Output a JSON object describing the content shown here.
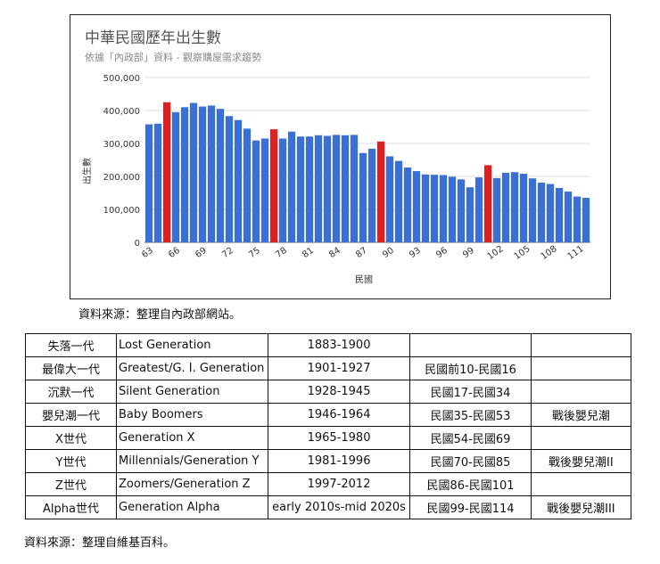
{
  "chart_data": {
    "type": "bar",
    "title": "中華民國歷年出生數",
    "subtitle": "依據「內政部」資料 - 觀察購屋需求趨勢",
    "xlabel": "民國",
    "ylabel": "出生數",
    "ylim": [
      0,
      500000
    ],
    "yticks": [
      "0",
      "100,000",
      "200,000",
      "300,000",
      "400,000",
      "500,000"
    ],
    "xtick_labels": [
      "63",
      "66",
      "69",
      "72",
      "75",
      "78",
      "81",
      "84",
      "87",
      "90",
      "93",
      "96",
      "99",
      "102",
      "105",
      "108",
      "111"
    ],
    "highlight_color": "#e02020",
    "bar_color": "#3a6fd8",
    "x": [
      63,
      64,
      65,
      66,
      67,
      68,
      69,
      70,
      71,
      72,
      73,
      74,
      75,
      76,
      77,
      78,
      79,
      80,
      81,
      82,
      83,
      84,
      85,
      86,
      87,
      88,
      89,
      90,
      91,
      92,
      93,
      94,
      95,
      96,
      97,
      98,
      99,
      100,
      101,
      102,
      103,
      104,
      105,
      106,
      107,
      108,
      109,
      110,
      111,
      112
    ],
    "values": [
      358000,
      360000,
      425000,
      395000,
      410000,
      423000,
      412000,
      415000,
      405000,
      383000,
      371000,
      345000,
      309000,
      315000,
      343000,
      315000,
      336000,
      321000,
      321000,
      325000,
      323000,
      326000,
      325000,
      326000,
      271000,
      284000,
      306000,
      261000,
      247000,
      227000,
      216000,
      206000,
      205000,
      204000,
      199000,
      191000,
      167000,
      197000,
      234000,
      195000,
      211000,
      213000,
      208000,
      194000,
      181000,
      177000,
      165000,
      154000,
      139000,
      135000
    ],
    "highlighted_x": [
      65,
      77,
      89,
      101
    ]
  },
  "source_1": "資料來源：整理自內政部網站。",
  "source_2": "資料來源：整理自維基百科。",
  "table": {
    "rows": [
      [
        "失落一代",
        "Lost Generation",
        "1883-1900",
        "",
        ""
      ],
      [
        "最偉大一代",
        "Greatest/G. I. Generation",
        "1901-1927",
        "民國前10-民國16",
        ""
      ],
      [
        "沉默一代",
        "Silent Generation",
        "1928-1945",
        "民國17-民國34",
        ""
      ],
      [
        "嬰兒潮一代",
        "Baby Boomers",
        "1946-1964",
        "民國35-民國53",
        "戰後嬰兒潮"
      ],
      [
        "X世代",
        "Generation X",
        "1965-1980",
        "民國54-民國69",
        ""
      ],
      [
        "Y世代",
        "Millennials/Generation Y",
        "1981-1996",
        "民國70-民國85",
        "戰後嬰兒潮II"
      ],
      [
        "Z世代",
        "Zoomers/Generation Z",
        "1997-2012",
        "民國86-民國101",
        ""
      ],
      [
        "Alpha世代",
        "Generation Alpha",
        "early 2010s-mid 2020s",
        "民國99-民國114",
        "戰後嬰兒潮III"
      ]
    ]
  }
}
